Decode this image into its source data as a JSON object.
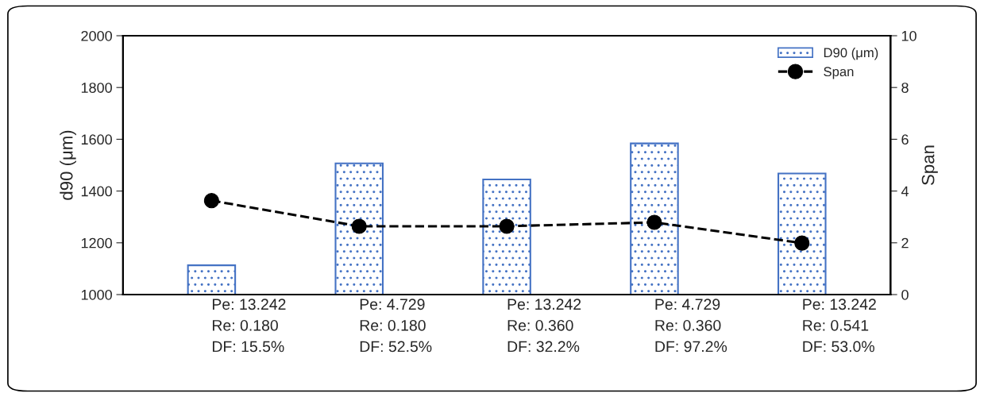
{
  "chart_data": {
    "type": "bar",
    "categories": [
      "Pe: 13.242\nRe: 0.180\nDF: 15.5%",
      "Pe: 4.729\nRe: 0.180\nDF: 52.5%",
      "Pe: 13.242\nRe: 0.360\nDF: 32.2%",
      "Pe: 4.729\nRe: 0.360\nDF: 97.2%",
      "Pe: 13.242\nRe: 0.541\nDF: 53.0%"
    ],
    "series": [
      {
        "name": "D90 (μm)",
        "color": "#4472c4",
        "values": [
          1113,
          1507,
          1445,
          1584,
          1468
        ]
      },
      {
        "name": "Span",
        "type": "line",
        "axis": "y2",
        "color": "#000000",
        "marker": "circle",
        "line_style": "dashed",
        "values": [
          3.63,
          2.64,
          2.64,
          2.79,
          1.99
        ]
      }
    ],
    "ylabel": "d90 (μm)",
    "y2label": "Span",
    "ylim": [
      1000,
      2000
    ],
    "yticks": [
      1000,
      1200,
      1400,
      1600,
      1800,
      2000
    ],
    "y2lim": [
      0,
      10
    ],
    "y2ticks": [
      0,
      2,
      4,
      6,
      8,
      10
    ],
    "grid": false,
    "legend": "top right"
  }
}
